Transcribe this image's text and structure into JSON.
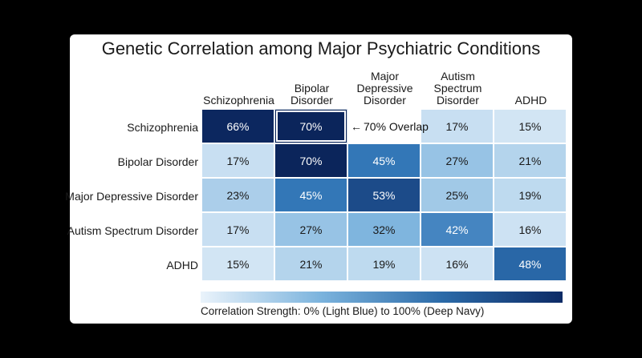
{
  "chart_data": {
    "type": "heatmap",
    "title": "Genetic Correlation among Major Psychiatric Conditions",
    "columns": [
      "Schizophrenia",
      "Bipolar\nDisorder",
      "Major\nDepressive\nDisorder",
      "Autism\nSpectrum\nDisorder",
      "ADHD"
    ],
    "rows": [
      "Schizophrenia",
      "Bipolar Disorder",
      "Major Depressive Disorder",
      "Autism Spectrum Disorder",
      "ADHD"
    ],
    "values": [
      [
        66,
        70,
        null,
        17,
        15
      ],
      [
        17,
        70,
        45,
        27,
        21
      ],
      [
        23,
        45,
        53,
        25,
        19
      ],
      [
        17,
        27,
        32,
        42,
        16
      ],
      [
        15,
        21,
        19,
        16,
        48
      ]
    ],
    "unit": "%",
    "highlight": {
      "row": 0,
      "col": 1
    },
    "annotation": {
      "text": "70% Overlap",
      "row": 0,
      "col": 2
    },
    "scale_min": 0,
    "scale_max": 100,
    "colorbar_label": "Correlation Strength: 0% (Light Blue) to 100% (Deep Navy)",
    "colors": {
      "low": "#eaf3fb",
      "mid": "#4a8cc7",
      "high": "#0d2b66",
      "background": "#000000",
      "card": "#ffffff"
    }
  }
}
